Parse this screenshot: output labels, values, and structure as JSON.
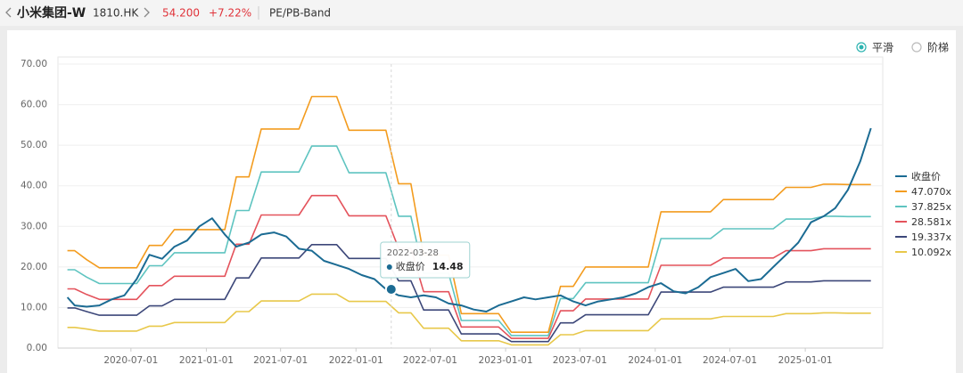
{
  "header": {
    "name": "小米集团-W",
    "code": "1810.HK",
    "price": "54.200",
    "change": "+7.22%",
    "section": "PE/PB-Band"
  },
  "options": {
    "items": [
      "平滑",
      "阶梯"
    ],
    "selected": 0
  },
  "chart_data": {
    "type": "line",
    "x": [
      "2020-01-28",
      "2020-02-15",
      "2020-03-15",
      "2020-04-15",
      "2020-05-15",
      "2020-06-15",
      "2020-07-15",
      "2020-08-15",
      "2020-09-15",
      "2020-10-15",
      "2020-11-15",
      "2020-12-15",
      "2021-01-15",
      "2021-02-15",
      "2021-03-15",
      "2021-04-15",
      "2021-05-15",
      "2021-06-15",
      "2021-07-15",
      "2021-08-15",
      "2021-09-15",
      "2021-10-15",
      "2021-11-15",
      "2021-12-15",
      "2022-01-15",
      "2022-02-15",
      "2022-03-15",
      "2022-04-15",
      "2022-05-15",
      "2022-06-15",
      "2022-07-15",
      "2022-08-15",
      "2022-09-15",
      "2022-10-15",
      "2022-11-15",
      "2022-12-15",
      "2023-01-15",
      "2023-02-15",
      "2023-03-15",
      "2023-04-15",
      "2023-05-15",
      "2023-06-15",
      "2023-07-15",
      "2023-08-15",
      "2023-09-15",
      "2023-10-15",
      "2023-11-15",
      "2023-12-15",
      "2024-01-15",
      "2024-02-15",
      "2024-03-15",
      "2024-04-15",
      "2024-05-15",
      "2024-06-15",
      "2024-07-15",
      "2024-08-15",
      "2024-09-15",
      "2024-10-15",
      "2024-11-15",
      "2024-12-15",
      "2025-01-15",
      "2025-02-15",
      "2025-03-15",
      "2025-04-15",
      "2025-05-15",
      "2025-06-10"
    ],
    "xlim": [
      "2020-01-05",
      "2025-07-09"
    ],
    "xticks": [
      "2020-07-01",
      "2021-01-01",
      "2021-07-01",
      "2022-01-01",
      "2022-07-01",
      "2023-01-01",
      "2023-07-01",
      "2024-01-01",
      "2024-07-01",
      "2025-01-01"
    ],
    "ylim": [
      0,
      70
    ],
    "yticks": [
      {
        "value": 0,
        "label": "0.00"
      },
      {
        "value": 10,
        "label": "10.00"
      },
      {
        "value": 20,
        "label": "20.00"
      },
      {
        "value": 30,
        "label": "30.00"
      },
      {
        "value": 40,
        "label": "40.00"
      },
      {
        "value": 50,
        "label": "50.00"
      },
      {
        "value": 60,
        "label": "60.00"
      },
      {
        "value": 70,
        "label": "70.00"
      }
    ],
    "grid": true,
    "legend": "right",
    "series": [
      {
        "name": "收盘价",
        "color": "#1b6b93",
        "values": [
          12.5,
          10.5,
          10.2,
          10.5,
          12.0,
          13.0,
          17.0,
          23.0,
          22.0,
          25.0,
          26.5,
          30.0,
          32.0,
          28.0,
          25.0,
          26.0,
          28.0,
          28.5,
          27.5,
          24.5,
          24.0,
          21.5,
          20.5,
          19.5,
          18.0,
          17.0,
          14.5,
          13.0,
          12.5,
          13.0,
          12.5,
          11.0,
          10.5,
          9.5,
          9.0,
          10.5,
          11.5,
          12.5,
          12.0,
          12.5,
          13.0,
          11.5,
          10.5,
          11.5,
          12.0,
          12.5,
          13.5,
          15.0,
          16.0,
          14.0,
          13.5,
          15.0,
          17.5,
          18.5,
          19.5,
          16.5,
          17.0,
          20.0,
          23.0,
          26.0,
          31.0,
          32.5,
          34.5,
          39.0,
          46.0,
          54.2
        ]
      },
      {
        "name": "47.070x",
        "color": "#f39c1f",
        "values": [
          24.0,
          24.0,
          21.8,
          19.8,
          19.8,
          19.8,
          19.8,
          25.3,
          25.3,
          29.2,
          29.2,
          29.2,
          29.2,
          29.2,
          42.2,
          42.2,
          54.0,
          54.0,
          54.0,
          54.0,
          62.0,
          62.0,
          62.0,
          53.7,
          53.7,
          53.7,
          53.7,
          40.5,
          40.5,
          22.9,
          22.9,
          22.9,
          8.5,
          8.5,
          8.5,
          8.5,
          3.9,
          3.9,
          3.9,
          3.9,
          15.2,
          15.2,
          20.0,
          20.0,
          20.0,
          20.0,
          20.0,
          20.0,
          33.6,
          33.6,
          33.6,
          33.6,
          33.6,
          36.6,
          36.6,
          36.6,
          36.6,
          36.6,
          39.6,
          39.6,
          39.6,
          40.4,
          40.4,
          40.3,
          40.3,
          40.3
        ]
      },
      {
        "name": "37.825x",
        "color": "#5ec4c0",
        "values": [
          19.3,
          19.3,
          17.5,
          15.9,
          15.9,
          15.9,
          15.9,
          20.3,
          20.3,
          23.5,
          23.5,
          23.5,
          23.5,
          23.5,
          33.9,
          33.9,
          43.4,
          43.4,
          43.4,
          43.4,
          49.8,
          49.8,
          49.8,
          43.2,
          43.2,
          43.2,
          43.2,
          32.5,
          32.5,
          18.4,
          18.4,
          18.4,
          6.8,
          6.8,
          6.8,
          6.8,
          3.1,
          3.1,
          3.1,
          3.1,
          12.2,
          12.2,
          16.1,
          16.1,
          16.1,
          16.1,
          16.1,
          16.1,
          27.0,
          27.0,
          27.0,
          27.0,
          27.0,
          29.4,
          29.4,
          29.4,
          29.4,
          29.4,
          31.8,
          31.8,
          31.8,
          32.5,
          32.5,
          32.4,
          32.4,
          32.4
        ]
      },
      {
        "name": "28.581x",
        "color": "#e4535c",
        "values": [
          14.6,
          14.6,
          13.2,
          12.0,
          12.0,
          12.0,
          12.0,
          15.4,
          15.4,
          17.7,
          17.7,
          17.7,
          17.7,
          17.7,
          25.6,
          25.6,
          32.8,
          32.8,
          32.8,
          32.8,
          37.6,
          37.6,
          37.6,
          32.6,
          32.6,
          32.6,
          32.6,
          24.6,
          24.6,
          13.9,
          13.9,
          13.9,
          5.2,
          5.2,
          5.2,
          5.2,
          2.4,
          2.4,
          2.4,
          2.4,
          9.2,
          9.2,
          12.1,
          12.1,
          12.1,
          12.1,
          12.1,
          12.1,
          20.4,
          20.4,
          20.4,
          20.4,
          20.4,
          22.2,
          22.2,
          22.2,
          22.2,
          22.2,
          24.0,
          24.0,
          24.0,
          24.5,
          24.5,
          24.5,
          24.5,
          24.5
        ]
      },
      {
        "name": "19.337x",
        "color": "#3c4779",
        "values": [
          9.9,
          9.9,
          9.0,
          8.1,
          8.1,
          8.1,
          8.1,
          10.4,
          10.4,
          12.0,
          12.0,
          12.0,
          12.0,
          12.0,
          17.3,
          17.3,
          22.2,
          22.2,
          22.2,
          22.2,
          25.5,
          25.5,
          25.5,
          22.1,
          22.1,
          22.1,
          22.1,
          16.6,
          16.6,
          9.4,
          9.4,
          9.4,
          3.5,
          3.5,
          3.5,
          3.5,
          1.6,
          1.6,
          1.6,
          1.6,
          6.2,
          6.2,
          8.2,
          8.2,
          8.2,
          8.2,
          8.2,
          8.2,
          13.8,
          13.8,
          13.8,
          13.8,
          13.8,
          15.0,
          15.0,
          15.0,
          15.0,
          15.0,
          16.3,
          16.3,
          16.3,
          16.6,
          16.6,
          16.6,
          16.6,
          16.6
        ]
      },
      {
        "name": "10.092x",
        "color": "#e8c84a",
        "values": [
          5.1,
          5.1,
          4.7,
          4.2,
          4.2,
          4.2,
          4.2,
          5.4,
          5.4,
          6.3,
          6.3,
          6.3,
          6.3,
          6.3,
          9.0,
          9.0,
          11.6,
          11.6,
          11.6,
          11.6,
          13.3,
          13.3,
          13.3,
          11.5,
          11.5,
          11.5,
          11.5,
          8.7,
          8.7,
          4.9,
          4.9,
          4.9,
          1.8,
          1.8,
          1.8,
          1.8,
          0.8,
          0.8,
          0.8,
          0.8,
          3.3,
          3.3,
          4.3,
          4.3,
          4.3,
          4.3,
          4.3,
          4.3,
          7.2,
          7.2,
          7.2,
          7.2,
          7.2,
          7.8,
          7.8,
          7.8,
          7.8,
          7.8,
          8.5,
          8.5,
          8.5,
          8.7,
          8.7,
          8.6,
          8.6,
          8.6
        ]
      }
    ],
    "tooltip": {
      "date": "2022-03-28",
      "label": "收盘价",
      "value": 14.48
    }
  }
}
